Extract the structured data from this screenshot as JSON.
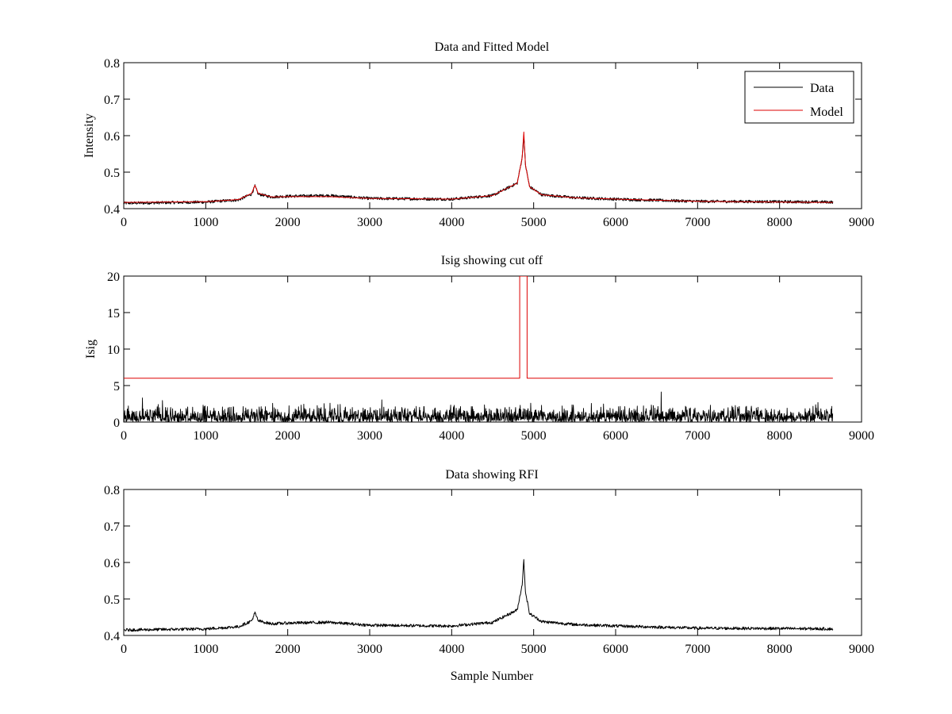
{
  "chart_data": [
    {
      "type": "line",
      "title": "Data and Fitted Model",
      "xlabel": "",
      "ylabel": "Intensity",
      "xlim": [
        0,
        9000
      ],
      "ylim": [
        0.4,
        0.8
      ],
      "xticks": [
        "0",
        "1000",
        "2000",
        "3000",
        "4000",
        "5000",
        "6000",
        "7000",
        "8000",
        "9000"
      ],
      "yticks": [
        "0.4",
        "0.5",
        "0.6",
        "0.7",
        "0.8"
      ],
      "legend": {
        "placement": "top-right",
        "entries": [
          "Data",
          "Model"
        ]
      },
      "series": [
        {
          "name": "Data",
          "color": "#000000",
          "style": "noisy",
          "noise": 0.004,
          "x": [
            0,
            1000,
            1400,
            1560,
            1600,
            1640,
            1800,
            2000,
            2500,
            3000,
            4000,
            4500,
            4800,
            4860,
            4880,
            4900,
            4950,
            5100,
            5500,
            6000,
            7000,
            8000,
            8650
          ],
          "y": [
            0.415,
            0.418,
            0.424,
            0.44,
            0.462,
            0.44,
            0.432,
            0.434,
            0.436,
            0.428,
            0.426,
            0.436,
            0.47,
            0.54,
            0.6,
            0.52,
            0.46,
            0.438,
            0.43,
            0.426,
            0.42,
            0.419,
            0.418
          ]
        },
        {
          "name": "Model",
          "color": "#dd0000",
          "style": "smooth",
          "x": [
            0,
            1000,
            1400,
            1560,
            1600,
            1640,
            1800,
            2000,
            2500,
            3000,
            4000,
            4500,
            4800,
            4860,
            4880,
            4900,
            4950,
            5100,
            5500,
            6000,
            7000,
            8000,
            8650
          ],
          "y": [
            0.417,
            0.419,
            0.425,
            0.442,
            0.464,
            0.442,
            0.432,
            0.433,
            0.433,
            0.428,
            0.426,
            0.436,
            0.47,
            0.54,
            0.61,
            0.52,
            0.46,
            0.438,
            0.43,
            0.426,
            0.42,
            0.418,
            0.417
          ]
        }
      ]
    },
    {
      "type": "line",
      "title": "Isig showing cut off",
      "xlabel": "",
      "ylabel": "Isig",
      "xlim": [
        0,
        9000
      ],
      "ylim": [
        0,
        20
      ],
      "xticks": [
        "0",
        "1000",
        "2000",
        "3000",
        "4000",
        "5000",
        "6000",
        "7000",
        "8000",
        "9000"
      ],
      "yticks": [
        "0",
        "5",
        "10",
        "15",
        "20"
      ],
      "series": [
        {
          "color": "#000000",
          "style": "abs-noise",
          "x": [
            0,
            8650
          ],
          "y": [
            0,
            0
          ],
          "noise": 1.2
        },
        {
          "color": "#dd0000",
          "style": "step",
          "x": [
            0,
            4830,
            4830,
            4920,
            4920,
            8650
          ],
          "y": [
            6,
            6,
            20,
            20,
            6,
            6
          ]
        }
      ]
    },
    {
      "type": "line",
      "title": "Data showing RFI",
      "xlabel": "Sample Number",
      "ylabel": "",
      "xlim": [
        0,
        9000
      ],
      "ylim": [
        0.4,
        0.8
      ],
      "xticks": [
        "0",
        "1000",
        "2000",
        "3000",
        "4000",
        "5000",
        "6000",
        "7000",
        "8000",
        "9000"
      ],
      "yticks": [
        "0.4",
        "0.5",
        "0.6",
        "0.7",
        "0.8"
      ],
      "series": [
        {
          "color": "#000000",
          "style": "noisy",
          "noise": 0.004,
          "x": [
            0,
            1000,
            1400,
            1560,
            1600,
            1640,
            1800,
            2000,
            2500,
            3000,
            4000,
            4500,
            4800,
            4860,
            4880,
            4900,
            4950,
            5100,
            5500,
            6000,
            7000,
            8000,
            8650
          ],
          "y": [
            0.415,
            0.418,
            0.424,
            0.44,
            0.462,
            0.44,
            0.432,
            0.434,
            0.436,
            0.428,
            0.426,
            0.436,
            0.47,
            0.54,
            0.606,
            0.52,
            0.46,
            0.438,
            0.43,
            0.426,
            0.42,
            0.419,
            0.418
          ]
        }
      ]
    }
  ]
}
